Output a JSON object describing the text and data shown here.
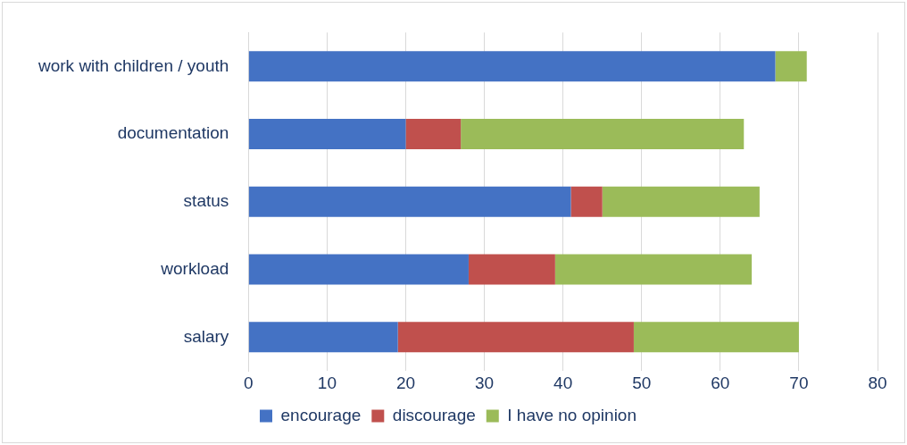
{
  "chart_data": {
    "type": "bar",
    "orientation": "horizontal",
    "stacked": true,
    "categories": [
      "work with children / youth",
      "documentation",
      "status",
      "workload",
      "salary"
    ],
    "series": [
      {
        "name": "encourage",
        "color": "#4472c4",
        "values": [
          67,
          20,
          41,
          28,
          19
        ]
      },
      {
        "name": "discourage",
        "color": "#c0504d",
        "values": [
          0,
          7,
          4,
          11,
          30
        ]
      },
      {
        "name": "I have no opinion",
        "color": "#9bbb59",
        "values": [
          4,
          36,
          20,
          25,
          21
        ]
      }
    ],
    "xlim": [
      0,
      80
    ],
    "xticks": [
      0,
      10,
      20,
      30,
      40,
      50,
      60,
      70,
      80
    ],
    "grid": "x",
    "legend": "bottom"
  }
}
